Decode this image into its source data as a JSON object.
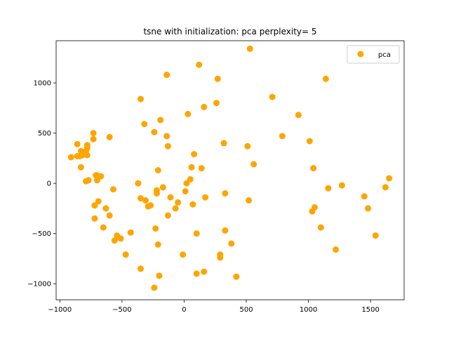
{
  "chart_data": {
    "type": "scatter",
    "title": "tsne with initialization: pca perplexity= 5",
    "xlabel": "",
    "ylabel": "",
    "xlim": [
      -1030,
      1770
    ],
    "ylim": [
      -1160,
      1420
    ],
    "xticks": [
      -1000,
      -500,
      0,
      500,
      1000,
      1500
    ],
    "yticks": [
      -1000,
      -500,
      0,
      500,
      1000
    ],
    "grid": false,
    "legend": "top-right",
    "series": [
      {
        "name": "pca",
        "color": "#ffa500",
        "points": [
          [
            -910,
            260
          ],
          [
            -860,
            390
          ],
          [
            -860,
            270
          ],
          [
            -840,
            270
          ],
          [
            -830,
            160
          ],
          [
            -830,
            320
          ],
          [
            -820,
            280
          ],
          [
            -790,
            320
          ],
          [
            -780,
            380
          ],
          [
            -780,
            350
          ],
          [
            -780,
            280
          ],
          [
            -790,
            20
          ],
          [
            -770,
            30
          ],
          [
            -730,
            500
          ],
          [
            -730,
            440
          ],
          [
            -710,
            80
          ],
          [
            -700,
            30
          ],
          [
            -700,
            80
          ],
          [
            -670,
            70
          ],
          [
            -720,
            -220
          ],
          [
            -720,
            -350
          ],
          [
            -690,
            -180
          ],
          [
            -650,
            -440
          ],
          [
            -630,
            -250
          ],
          [
            -600,
            460
          ],
          [
            -600,
            -320
          ],
          [
            -570,
            -60
          ],
          [
            -560,
            -570
          ],
          [
            -540,
            -520
          ],
          [
            -510,
            -550
          ],
          [
            -470,
            -710
          ],
          [
            -430,
            -490
          ],
          [
            -370,
            0
          ],
          [
            -350,
            840
          ],
          [
            -350,
            -150
          ],
          [
            -350,
            -850
          ],
          [
            -320,
            590
          ],
          [
            -310,
            -170
          ],
          [
            -290,
            -230
          ],
          [
            -270,
            -220
          ],
          [
            -240,
            510
          ],
          [
            -240,
            -1040
          ],
          [
            -230,
            -450
          ],
          [
            -220,
            -70
          ],
          [
            -220,
            -100
          ],
          [
            -210,
            130
          ],
          [
            -210,
            -610
          ],
          [
            -200,
            -920
          ],
          [
            -190,
            630
          ],
          [
            -170,
            -40
          ],
          [
            -140,
            1080
          ],
          [
            -140,
            470
          ],
          [
            -130,
            370
          ],
          [
            -130,
            -320
          ],
          [
            -110,
            -140
          ],
          [
            -70,
            -250
          ],
          [
            -50,
            -190
          ],
          [
            -10,
            -710
          ],
          [
            10,
            -80
          ],
          [
            20,
            0
          ],
          [
            30,
            690
          ],
          [
            50,
            40
          ],
          [
            60,
            160
          ],
          [
            70,
            -210
          ],
          [
            80,
            290
          ],
          [
            100,
            -500
          ],
          [
            100,
            -900
          ],
          [
            120,
            1180
          ],
          [
            140,
            150
          ],
          [
            160,
            760
          ],
          [
            160,
            -880
          ],
          [
            170,
            -140
          ],
          [
            260,
            800
          ],
          [
            270,
            1040
          ],
          [
            290,
            -710
          ],
          [
            290,
            -740
          ],
          [
            320,
            400
          ],
          [
            330,
            -100
          ],
          [
            330,
            -470
          ],
          [
            380,
            -600
          ],
          [
            420,
            -930
          ],
          [
            510,
            370
          ],
          [
            520,
            -170
          ],
          [
            530,
            1340
          ],
          [
            560,
            190
          ],
          [
            710,
            860
          ],
          [
            790,
            470
          ],
          [
            920,
            680
          ],
          [
            1010,
            420
          ],
          [
            1030,
            -280
          ],
          [
            1040,
            150
          ],
          [
            1050,
            -240
          ],
          [
            1100,
            -440
          ],
          [
            1140,
            1040
          ],
          [
            1160,
            -50
          ],
          [
            1220,
            -660
          ],
          [
            1270,
            -20
          ],
          [
            1450,
            -130
          ],
          [
            1480,
            -250
          ],
          [
            1540,
            -520
          ],
          [
            1620,
            -40
          ],
          [
            1650,
            50
          ]
        ]
      }
    ]
  }
}
